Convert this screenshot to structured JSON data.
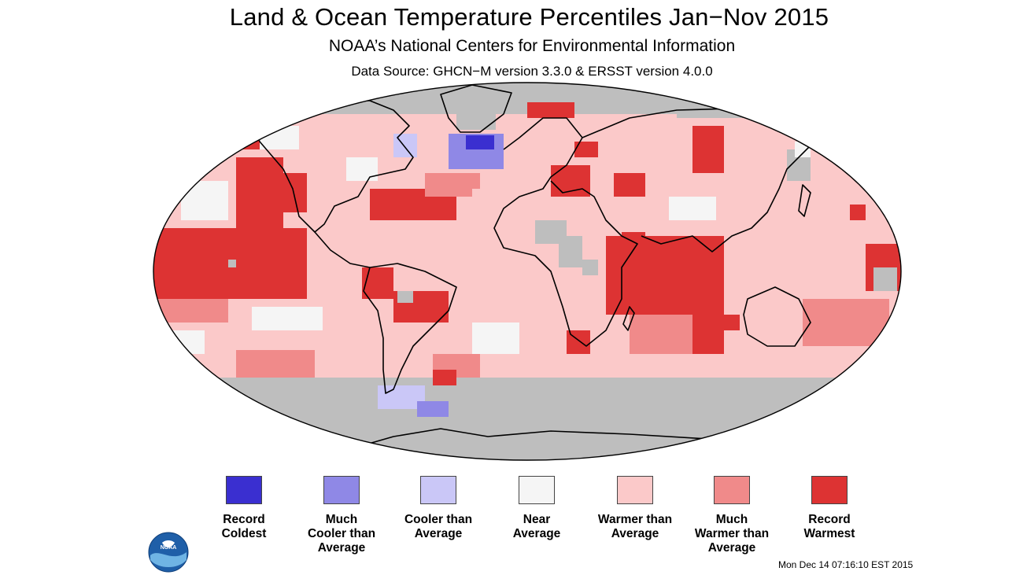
{
  "header": {
    "title": "Land & Ocean Temperature Percentiles Jan−Nov 2015",
    "subtitle": "NOAA’s National Centers for Environmental Information",
    "data_source": "Data Source: GHCN−M version 3.3.0 & ERSST version 4.0.0"
  },
  "map": {
    "projection": "Robinson",
    "no_data_color": "#bebebe",
    "coastline_color": "#000000"
  },
  "legend": [
    {
      "key": "record-coldest",
      "label": "Record\nColdest",
      "color": "#3a2fd0"
    },
    {
      "key": "much-cooler",
      "label": "Much\nCooler than\nAverage",
      "color": "#8f88e6"
    },
    {
      "key": "cooler",
      "label": "Cooler than\nAverage",
      "color": "#cac7f7"
    },
    {
      "key": "near-average",
      "label": "Near\nAverage",
      "color": "#f5f5f5"
    },
    {
      "key": "warmer",
      "label": "Warmer than\nAverage",
      "color": "#fbc9c9"
    },
    {
      "key": "much-warmer",
      "label": "Much\nWarmer than\nAverage",
      "color": "#f08a8a"
    },
    {
      "key": "record-warmest",
      "label": "Record\nWarmest",
      "color": "#dd3333"
    }
  ],
  "logo": {
    "text": "NOAA"
  },
  "footer": {
    "timestamp": "Mon Dec 14 07:16:10 EST 2015"
  }
}
